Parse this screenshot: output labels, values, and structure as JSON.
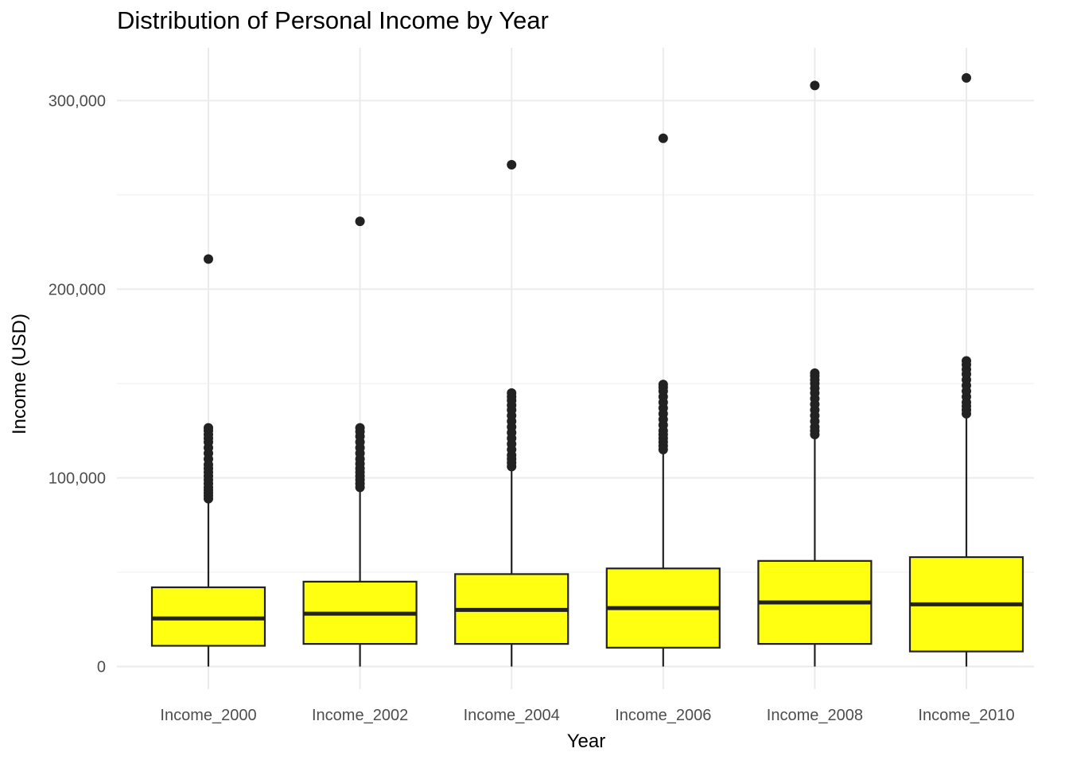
{
  "chart_data": {
    "type": "box",
    "title": "Distribution of Personal Income by Year",
    "xlabel": "Year",
    "ylabel": "Income (USD)",
    "ylim": [
      -12000,
      328000
    ],
    "y_ticks": [
      0,
      100000,
      200000,
      300000
    ],
    "y_tick_labels": [
      "0",
      "100,000",
      "200,000",
      "300,000"
    ],
    "grid": true,
    "legend": "none",
    "box_fill": "#ffff11",
    "line_color": "#222222",
    "grid_color": "#ebebeb",
    "categories": [
      "Income_2000",
      "Income_2002",
      "Income_2004",
      "Income_2006",
      "Income_2008",
      "Income_2010"
    ],
    "boxes": [
      {
        "category": "Income_2000",
        "min": 0,
        "q1": 11000,
        "median": 25500,
        "q3": 42000,
        "whisker_high": 88000,
        "outliers": [
          89000,
          90500,
          92000,
          93500,
          95000,
          97000,
          99000,
          101000,
          103000,
          105000,
          107000,
          110000,
          113000,
          116000,
          119000,
          121000,
          123000,
          125000,
          126500,
          216000
        ]
      },
      {
        "category": "Income_2002",
        "min": 0,
        "q1": 12000,
        "median": 28000,
        "q3": 45000,
        "whisker_high": 94000,
        "outliers": [
          95000,
          97000,
          99000,
          101000,
          103000,
          105000,
          107500,
          110000,
          113000,
          116000,
          119000,
          122000,
          124500,
          126500,
          236000
        ]
      },
      {
        "category": "Income_2004",
        "min": 0,
        "q1": 12000,
        "median": 30000,
        "q3": 49000,
        "whisker_high": 105000,
        "outliers": [
          106000,
          108000,
          110000,
          112000,
          115000,
          118000,
          121000,
          124000,
          127000,
          130000,
          133000,
          136000,
          138500,
          141000,
          143000,
          145000,
          266000
        ]
      },
      {
        "category": "Income_2006",
        "min": 0,
        "q1": 10000,
        "median": 31000,
        "q3": 52000,
        "whisker_high": 114000,
        "outliers": [
          115000,
          117000,
          119000,
          121000,
          123000,
          125000,
          128000,
          131000,
          134000,
          137000,
          140000,
          143000,
          146000,
          148000,
          149500,
          280000
        ]
      },
      {
        "category": "Income_2008",
        "min": 0,
        "q1": 12000,
        "median": 34000,
        "q3": 56000,
        "whisker_high": 122000,
        "outliers": [
          123000,
          125000,
          127000,
          130000,
          133000,
          136000,
          139000,
          142000,
          145000,
          147500,
          150000,
          152000,
          154000,
          155500,
          308000
        ]
      },
      {
        "category": "Income_2010",
        "min": 0,
        "q1": 8000,
        "median": 33000,
        "q3": 58000,
        "whisker_high": 133000,
        "outliers": [
          134000,
          136000,
          138000,
          140000,
          143000,
          146000,
          149000,
          152000,
          155000,
          157500,
          160000,
          162000,
          312000
        ]
      }
    ]
  }
}
